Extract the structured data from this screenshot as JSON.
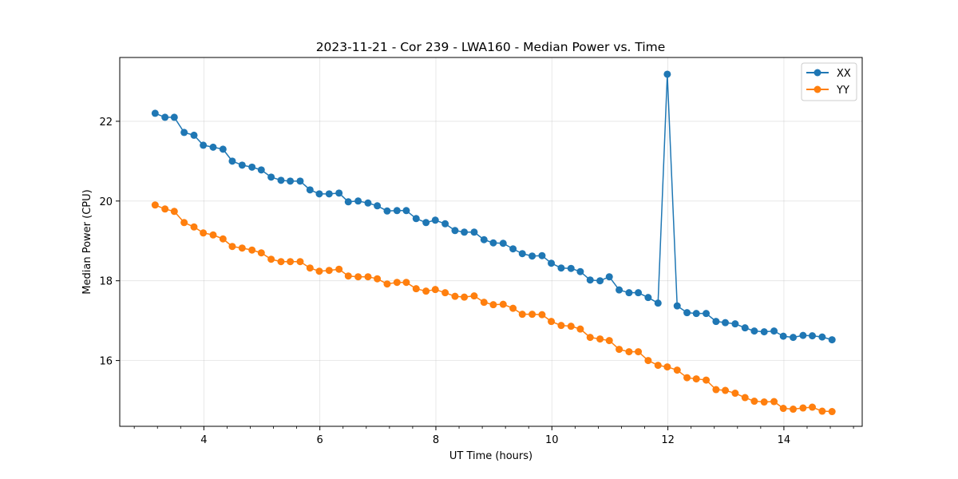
{
  "chart_data": {
    "type": "line",
    "title": "2023-11-21 - Cor 239 - LWA160 - Median Power vs. Time",
    "xlabel": "UT Time (hours)",
    "ylabel": "Median Power (CPU)",
    "xlim": [
      2.55,
      15.35
    ],
    "ylim": [
      14.35,
      23.6
    ],
    "xticks": [
      4,
      6,
      8,
      10,
      12,
      14
    ],
    "xtick_labels": [
      "4",
      "6",
      "8",
      "10",
      "12",
      "14"
    ],
    "yticks": [
      16,
      18,
      20,
      22
    ],
    "ytick_labels": [
      "16",
      "18",
      "20",
      "22"
    ],
    "grid": true,
    "legend_position": "top-right",
    "x": [
      3.16,
      3.33,
      3.49,
      3.66,
      3.83,
      3.99,
      4.16,
      4.33,
      4.49,
      4.66,
      4.83,
      4.99,
      5.16,
      5.33,
      5.49,
      5.66,
      5.83,
      5.99,
      6.16,
      6.33,
      6.49,
      6.66,
      6.83,
      6.99,
      7.16,
      7.33,
      7.49,
      7.66,
      7.83,
      7.99,
      8.16,
      8.33,
      8.49,
      8.66,
      8.83,
      8.99,
      9.16,
      9.33,
      9.49,
      9.66,
      9.83,
      9.99,
      10.16,
      10.33,
      10.49,
      10.66,
      10.83,
      10.99,
      11.16,
      11.33,
      11.49,
      11.66,
      11.83,
      11.99,
      12.16,
      12.33,
      12.49,
      12.66,
      12.83,
      12.99,
      13.16,
      13.33,
      13.49,
      13.66,
      13.83,
      13.99,
      14.16,
      14.33,
      14.49,
      14.66,
      14.83
    ],
    "series": [
      {
        "name": "XX",
        "color": "#1f77b4",
        "values": [
          22.2,
          22.1,
          22.1,
          21.72,
          21.65,
          21.4,
          21.35,
          21.3,
          21.0,
          20.9,
          20.85,
          20.78,
          20.6,
          20.52,
          20.5,
          20.5,
          20.28,
          20.18,
          20.18,
          20.2,
          19.98,
          20.0,
          19.95,
          19.88,
          19.75,
          19.76,
          19.76,
          19.56,
          19.46,
          19.52,
          19.43,
          19.26,
          19.22,
          19.22,
          19.03,
          18.95,
          18.94,
          18.8,
          18.68,
          18.62,
          18.63,
          18.44,
          18.32,
          18.31,
          18.23,
          18.02,
          18.0,
          18.1,
          17.77,
          17.7,
          17.7,
          17.58,
          17.44,
          23.18,
          17.37,
          17.2,
          17.18,
          17.18,
          16.98,
          16.95,
          16.92,
          16.82,
          16.74,
          16.72,
          16.74,
          16.61,
          16.58,
          16.63,
          16.62,
          16.59,
          16.52
        ]
      },
      {
        "name": "YY",
        "color": "#ff7f0e",
        "values": [
          19.9,
          19.8,
          19.74,
          19.46,
          19.35,
          19.2,
          19.15,
          19.05,
          18.86,
          18.82,
          18.77,
          18.7,
          18.54,
          18.48,
          18.48,
          18.48,
          18.32,
          18.24,
          18.26,
          18.29,
          18.12,
          18.1,
          18.1,
          18.05,
          17.92,
          17.96,
          17.96,
          17.8,
          17.74,
          17.78,
          17.7,
          17.61,
          17.59,
          17.62,
          17.46,
          17.4,
          17.41,
          17.31,
          17.16,
          17.16,
          17.15,
          16.98,
          16.88,
          16.86,
          16.79,
          16.58,
          16.54,
          16.5,
          16.28,
          16.22,
          16.22,
          16.0,
          15.88,
          15.84,
          15.76,
          15.57,
          15.54,
          15.51,
          15.27,
          15.25,
          15.18,
          15.07,
          14.98,
          14.96,
          14.97,
          14.8,
          14.78,
          14.81,
          14.83,
          14.73,
          14.72
        ]
      }
    ]
  }
}
